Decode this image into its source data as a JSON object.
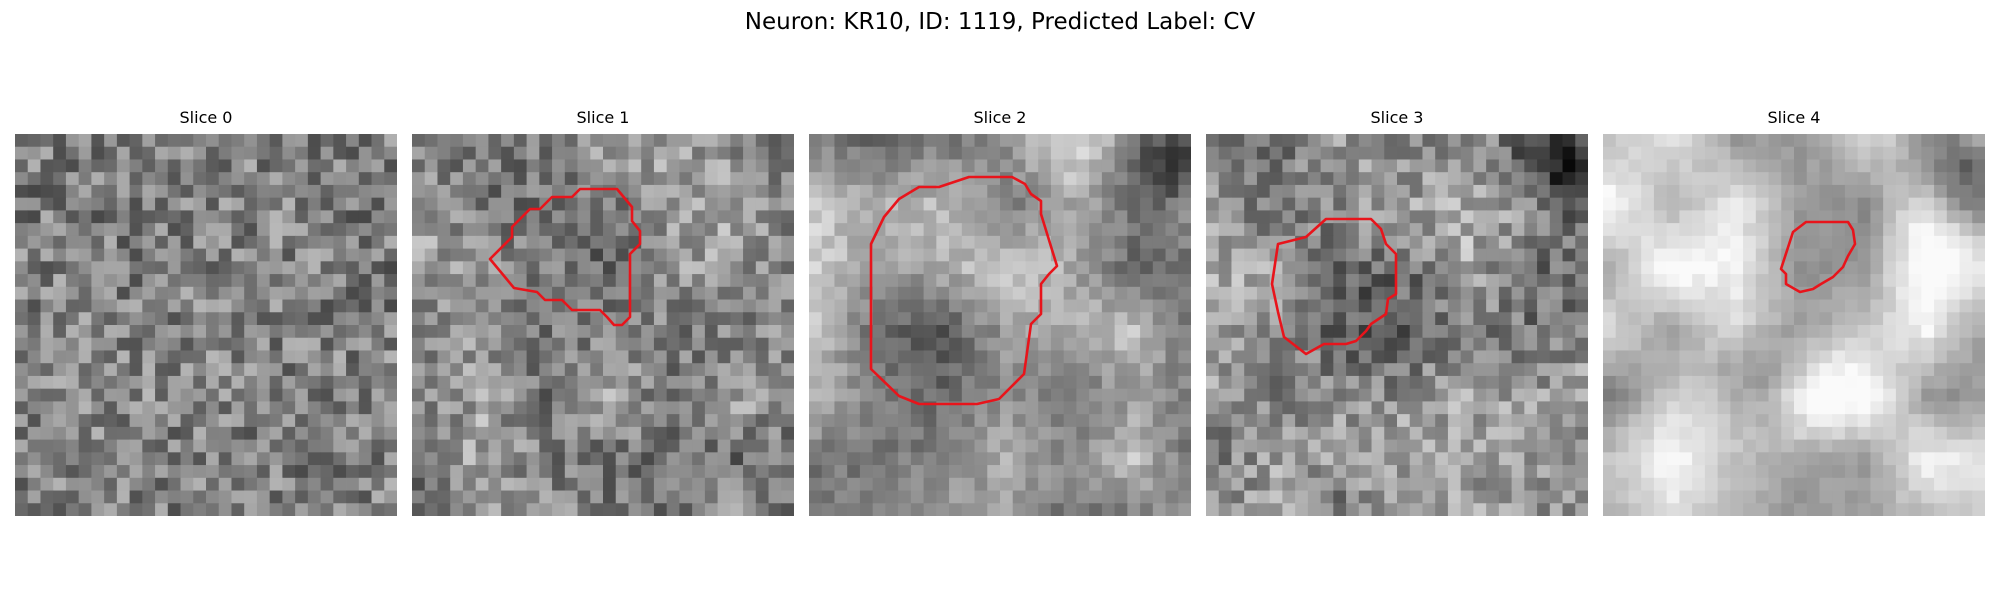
{
  "figure": {
    "title": "Neuron: KR10, ID: 1119, Predicted Label: CV",
    "colormap": "grayscale",
    "contour_color": "#e8141b"
  },
  "panels": [
    {
      "title": "Slice 0",
      "has_contour": false
    },
    {
      "title": "Slice 1",
      "has_contour": true
    },
    {
      "title": "Slice 2",
      "has_contour": true
    },
    {
      "title": "Slice 3",
      "has_contour": true
    },
    {
      "title": "Slice 4",
      "has_contour": true
    }
  ]
}
